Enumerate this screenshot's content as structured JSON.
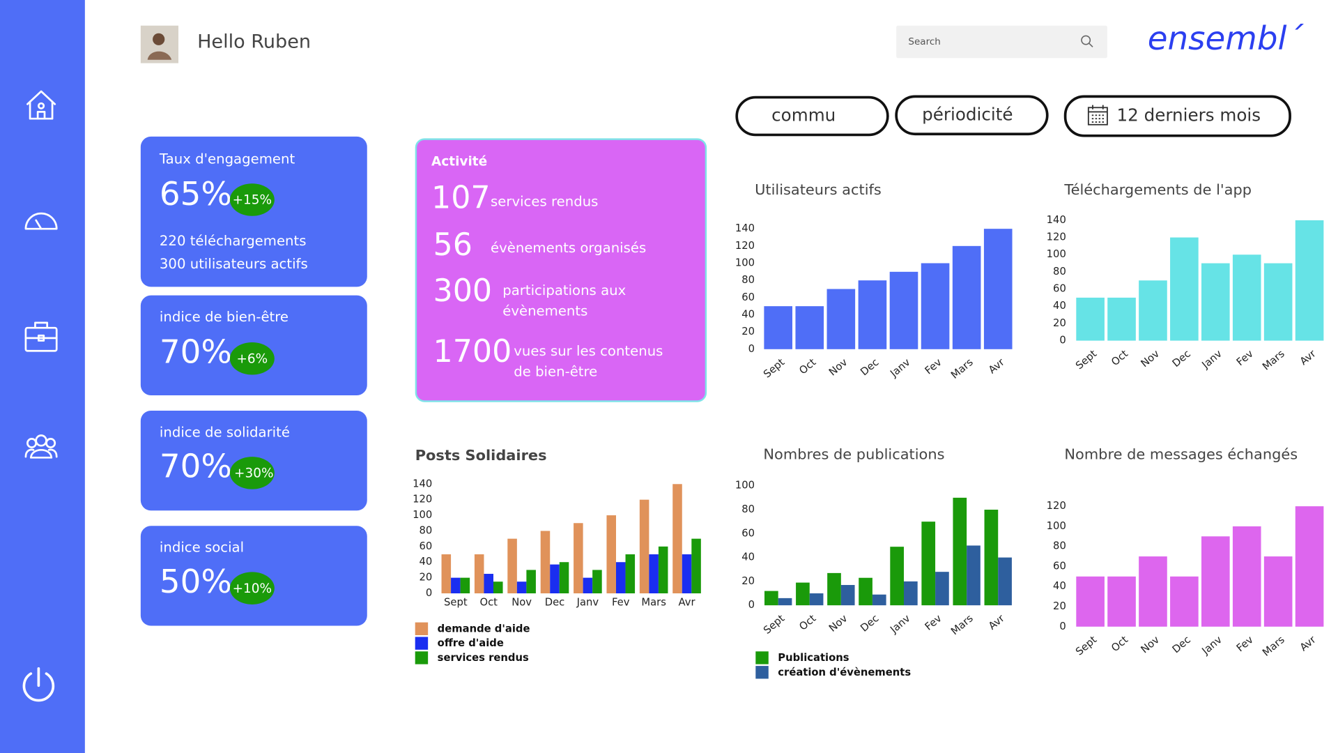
{
  "header": {
    "greeting": "Hello Ruben",
    "search_placeholder": "Search",
    "logo": "ensembl´"
  },
  "filters": [
    "commu",
    "périodicité",
    "12 derniers mois"
  ],
  "kpis": [
    {
      "title": "Taux d'engagement",
      "value": "65%",
      "change": "+15%",
      "details": [
        "220 téléchargements",
        "300 utilisateurs actifs"
      ]
    },
    {
      "title": "indice de bien-être",
      "value": "70%",
      "change": "+6%"
    },
    {
      "title": "indice de solidarité",
      "value": "70%",
      "change": "+30%"
    },
    {
      "title": "indice social",
      "value": "50%",
      "change": "+10%"
    }
  ],
  "activity": {
    "title": "Activité",
    "items": [
      {
        "value": "107",
        "label": [
          "services rendus"
        ]
      },
      {
        "value": "56",
        "label": [
          "évènements organisés"
        ]
      },
      {
        "value": "300",
        "label": [
          "participations aux",
          "évènements"
        ]
      },
      {
        "value": "1700",
        "label": [
          "vues sur les contenus",
          "de bien-être"
        ]
      }
    ]
  },
  "chart_data": [
    {
      "type": "bar",
      "title": "Utilisateurs actifs",
      "categories": [
        "Sept",
        "Oct",
        "Nov",
        "Dec",
        "Janv",
        "Fev",
        "Mars",
        "Avr"
      ],
      "values": [
        50,
        50,
        70,
        80,
        90,
        100,
        120,
        140
      ],
      "color": "#4f6ef7",
      "ylim": [
        0,
        140
      ],
      "yticks": [
        0,
        20,
        40,
        60,
        80,
        100,
        120,
        140
      ]
    },
    {
      "type": "bar",
      "title": "Téléchargements de l'app",
      "categories": [
        "Sept",
        "Oct",
        "Nov",
        "Dec",
        "Janv",
        "Fev",
        "Mars",
        "Avr"
      ],
      "values": [
        50,
        50,
        70,
        120,
        90,
        100,
        90,
        140
      ],
      "color": "#66e3e6",
      "ylim": [
        0,
        140
      ],
      "yticks": [
        0,
        20,
        40,
        60,
        80,
        100,
        120,
        140
      ]
    },
    {
      "type": "bar",
      "title": "Posts Solidaires",
      "categories": [
        "Sept",
        "Oct",
        "Nov",
        "Dec",
        "Janv",
        "Fev",
        "Mars",
        "Avr"
      ],
      "series": [
        {
          "name": "demande d'aide",
          "color": "#e0925a",
          "values": [
            50,
            50,
            70,
            80,
            90,
            100,
            120,
            140
          ]
        },
        {
          "name": "offre d'aide",
          "color": "#1a2ef0",
          "values": [
            20,
            25,
            15,
            37,
            20,
            40,
            50,
            50
          ]
        },
        {
          "name": "services rendus",
          "color": "#1a9a0a",
          "values": [
            20,
            15,
            30,
            40,
            30,
            50,
            60,
            70
          ]
        }
      ],
      "ylim": [
        0,
        140
      ],
      "yticks": [
        0,
        20,
        40,
        60,
        80,
        100,
        120,
        140
      ]
    },
    {
      "type": "bar",
      "title": "Nombres de publications",
      "categories": [
        "Sept",
        "Oct",
        "Nov",
        "Dec",
        "Janv",
        "Fev",
        "Mars",
        "Avr"
      ],
      "series": [
        {
          "name": "Publications",
          "color": "#1a9a0a",
          "values": [
            12,
            19,
            27,
            23,
            49,
            70,
            90,
            80
          ]
        },
        {
          "name": "création d'évènements",
          "color": "#2e5f9e",
          "values": [
            6,
            10,
            17,
            9,
            20,
            28,
            50,
            40
          ]
        }
      ],
      "ylim": [
        0,
        100
      ],
      "yticks": [
        0,
        20,
        40,
        60,
        80,
        100
      ]
    },
    {
      "type": "bar",
      "title": "Nombre de messages échangés",
      "categories": [
        "Sept",
        "Oct",
        "Nov",
        "Dec",
        "Janv",
        "Fev",
        "Mars",
        "Avr"
      ],
      "values": [
        50,
        50,
        70,
        50,
        90,
        100,
        70,
        120
      ],
      "color": "#dd66ee",
      "ylim": [
        0,
        120
      ],
      "yticks": [
        0,
        20,
        40,
        60,
        80,
        100,
        120
      ]
    }
  ]
}
